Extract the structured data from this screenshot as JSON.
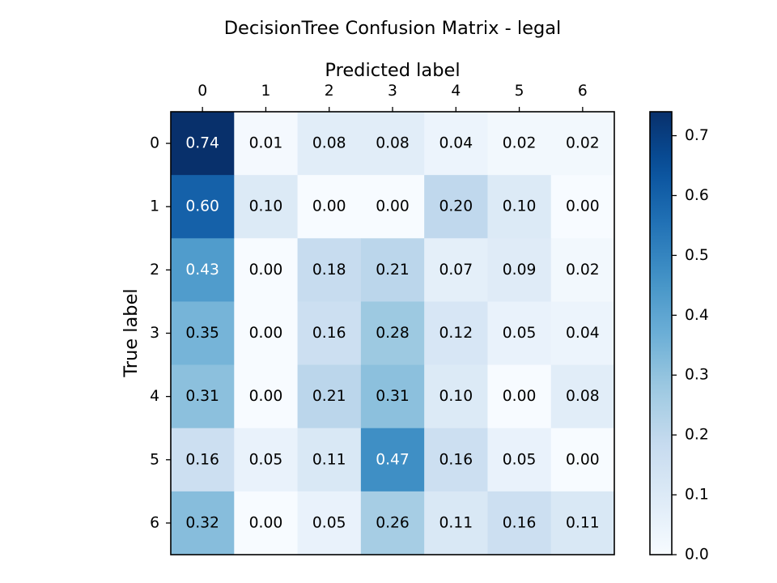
{
  "chart_data": {
    "type": "heatmap",
    "title": "DecisionTree Confusion Matrix - legal",
    "xlabel": "Predicted label",
    "ylabel": "True label",
    "x_categories": [
      "0",
      "1",
      "2",
      "3",
      "4",
      "5",
      "6"
    ],
    "y_categories": [
      "0",
      "1",
      "2",
      "3",
      "4",
      "5",
      "6"
    ],
    "values": [
      [
        0.74,
        0.01,
        0.08,
        0.08,
        0.04,
        0.02,
        0.02
      ],
      [
        0.6,
        0.1,
        0.0,
        0.0,
        0.2,
        0.1,
        0.0
      ],
      [
        0.43,
        0.0,
        0.18,
        0.21,
        0.07,
        0.09,
        0.02
      ],
      [
        0.35,
        0.0,
        0.16,
        0.28,
        0.12,
        0.05,
        0.04
      ],
      [
        0.31,
        0.0,
        0.21,
        0.31,
        0.1,
        0.0,
        0.08
      ],
      [
        0.16,
        0.05,
        0.11,
        0.47,
        0.16,
        0.05,
        0.0
      ],
      [
        0.32,
        0.0,
        0.05,
        0.26,
        0.11,
        0.16,
        0.11
      ]
    ],
    "value_range": [
      0.0,
      0.74
    ],
    "colormap": "Blues",
    "colorbar_ticks": [
      "0.0",
      "0.1",
      "0.2",
      "0.3",
      "0.4",
      "0.5",
      "0.6",
      "0.7"
    ],
    "x_axis_position": "top",
    "grid": false
  }
}
